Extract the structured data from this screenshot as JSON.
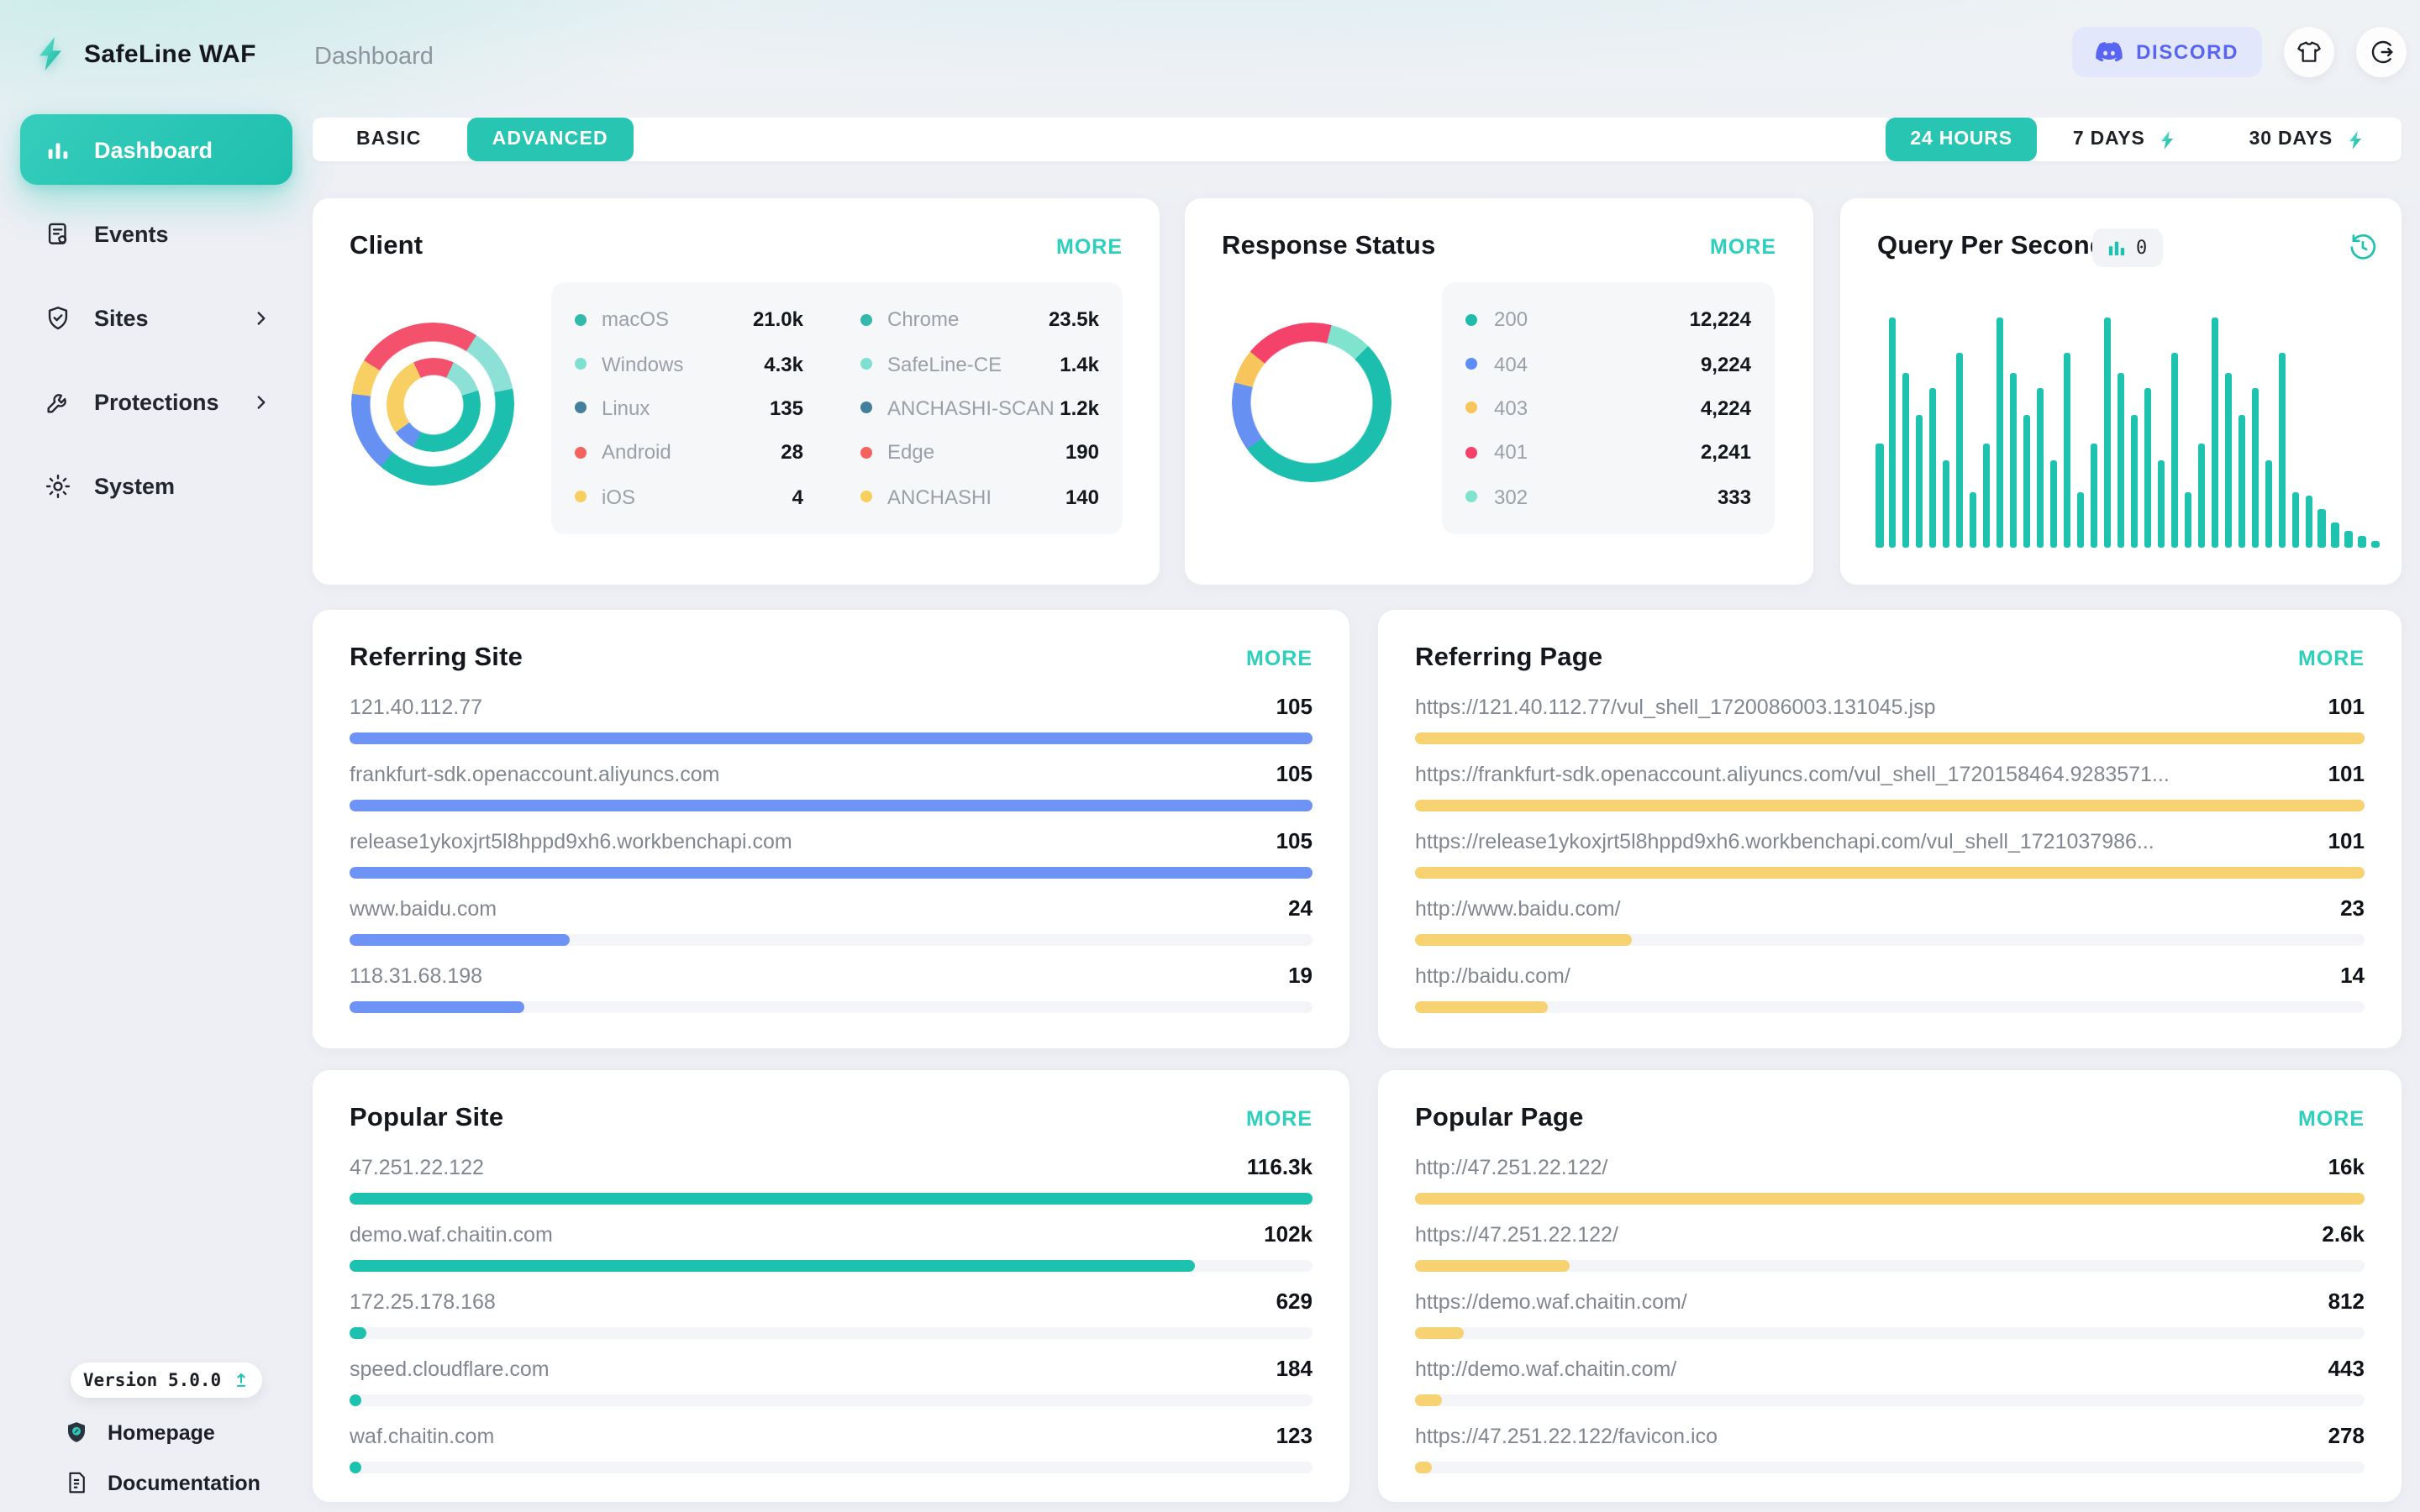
{
  "app": {
    "brand": "SafeLine WAF",
    "page_title": "Dashboard",
    "version": "Version 5.0.0"
  },
  "header": {
    "discord_label": "DISCORD"
  },
  "strings": {
    "more": "MORE"
  },
  "colors": {
    "accent_teal": "#29c5b3",
    "more_link": "#2ed0bd",
    "chart_teal": "#1cbfae",
    "chart_mint": "#8ce0d6",
    "chart_blue": "#6691f3",
    "chart_red": "#f4516c",
    "chart_yellow": "#f7cf62",
    "bar_blue": "#6d93f4",
    "bar_yellow": "#f7d272",
    "bar_teal": "#1dc2ae",
    "discord": "#5865f2"
  },
  "sidebar": {
    "items": [
      {
        "id": "dashboard",
        "label": "Dashboard",
        "icon": "chart-bars",
        "active": true,
        "chevron": false
      },
      {
        "id": "events",
        "label": "Events",
        "icon": "events-doc",
        "active": false,
        "chevron": false
      },
      {
        "id": "sites",
        "label": "Sites",
        "icon": "shield-check",
        "active": false,
        "chevron": true
      },
      {
        "id": "protections",
        "label": "Protections",
        "icon": "tools",
        "active": false,
        "chevron": true
      },
      {
        "id": "system",
        "label": "System",
        "icon": "gear",
        "active": false,
        "chevron": false
      }
    ],
    "footer_links": [
      {
        "id": "homepage",
        "label": "Homepage",
        "icon": "home-shield"
      },
      {
        "id": "documentation",
        "label": "Documentation",
        "icon": "doc"
      }
    ]
  },
  "toolbar": {
    "mode_tabs": {
      "basic": "BASIC",
      "advanced": "ADVANCED"
    },
    "range_tabs": [
      {
        "label": "24 HOURS",
        "active": true,
        "logo": false
      },
      {
        "label": "7 DAYS",
        "active": false,
        "logo": true
      },
      {
        "label": "30 DAYS",
        "active": false,
        "logo": true
      }
    ]
  },
  "cards": {
    "client": {
      "title": "Client",
      "legend_os": [
        {
          "label": "macOS",
          "value": "21.0k",
          "color": "#35b8ac"
        },
        {
          "label": "Windows",
          "value": "4.3k",
          "color": "#7fe0d0"
        },
        {
          "label": "Linux",
          "value": "135",
          "color": "#44809e"
        },
        {
          "label": "Android",
          "value": "28",
          "color": "#f5635f"
        },
        {
          "label": "iOS",
          "value": "4",
          "color": "#f8cf5e"
        }
      ],
      "legend_browser": [
        {
          "label": "Chrome",
          "value": "23.5k",
          "color": "#35b8ac"
        },
        {
          "label": "SafeLine-CE",
          "value": "1.4k",
          "color": "#7fe0d0"
        },
        {
          "label": "ANCHASHI-SCAN",
          "value": "1.2k",
          "color": "#44809e"
        },
        {
          "label": "Edge",
          "value": "190",
          "color": "#f5635f"
        },
        {
          "label": "ANCHASHI",
          "value": "140",
          "color": "#f8cf5e"
        }
      ],
      "donut_outer": [
        [
          "#f4516c",
          9
        ],
        [
          "#8ce0d6",
          22
        ],
        [
          "#1cbfae",
          61
        ],
        [
          "#6691f3",
          77
        ],
        [
          "#f7cf62",
          84
        ],
        [
          "#f4516c",
          100
        ]
      ],
      "donut_inner": [
        [
          "#f4516c",
          7
        ],
        [
          "#8ce0d6",
          20
        ],
        [
          "#1cbfae",
          57
        ],
        [
          "#6691f3",
          65
        ],
        [
          "#f7cf62",
          93
        ],
        [
          "#f4516c",
          100
        ]
      ]
    },
    "response_status": {
      "title": "Response Status",
      "legend": [
        {
          "label": "200",
          "value": "12,224",
          "color": "#1fbcab"
        },
        {
          "label": "404",
          "value": "9,224",
          "color": "#5e8ef5"
        },
        {
          "label": "403",
          "value": "4,224",
          "color": "#f8c45c"
        },
        {
          "label": "401",
          "value": "2,241",
          "color": "#f4426b"
        },
        {
          "label": "302",
          "value": "333",
          "color": "#7fe3cd"
        }
      ],
      "donut": [
        [
          "#f4426b",
          4
        ],
        [
          "#7fe3cd",
          12.5
        ],
        [
          "#1cbfae",
          65
        ],
        [
          "#6691f3",
          79
        ],
        [
          "#f8c45c",
          86
        ],
        [
          "#f4426b",
          100
        ]
      ]
    },
    "qps": {
      "title": "Query Per Second",
      "counter": "0",
      "bar_color": "#1ec3b0",
      "bars": [
        45,
        100,
        76,
        58,
        69,
        38,
        85,
        24,
        45,
        100,
        76,
        58,
        69,
        38,
        85,
        24,
        45,
        100,
        76,
        58,
        69,
        38,
        85,
        24,
        45,
        100,
        76,
        58,
        69,
        38,
        85,
        24,
        23,
        17,
        11,
        7,
        5,
        3
      ]
    },
    "referring_site": {
      "title": "Referring Site",
      "bar_color": "#6d93f4",
      "rows": [
        {
          "label": "121.40.112.77",
          "value": "105",
          "pct": 100
        },
        {
          "label": "frankfurt-sdk.openaccount.aliyuncs.com",
          "value": "105",
          "pct": 100
        },
        {
          "label": "release1ykoxjrt5l8hppd9xh6.workbenchapi.com",
          "value": "105",
          "pct": 100
        },
        {
          "label": "www.baidu.com",
          "value": "24",
          "pct": 22.9
        },
        {
          "label": "118.31.68.198",
          "value": "19",
          "pct": 18.1
        }
      ]
    },
    "referring_page": {
      "title": "Referring Page",
      "bar_color": "#f7d272",
      "rows": [
        {
          "label": "https://121.40.112.77/vul_shell_1720086003.131045.jsp",
          "value": "101",
          "pct": 100
        },
        {
          "label": "https://frankfurt-sdk.openaccount.aliyuncs.com/vul_shell_1720158464.9283571...",
          "value": "101",
          "pct": 100
        },
        {
          "label": "https://release1ykoxjrt5l8hppd9xh6.workbenchapi.com/vul_shell_1721037986...",
          "value": "101",
          "pct": 100
        },
        {
          "label": "http://www.baidu.com/",
          "value": "23",
          "pct": 22.8
        },
        {
          "label": "http://baidu.com/",
          "value": "14",
          "pct": 13.9
        }
      ]
    },
    "popular_site": {
      "title": "Popular Site",
      "bar_color": "#1dc2ae",
      "rows": [
        {
          "label": "47.251.22.122",
          "value": "116.3k",
          "pct": 100
        },
        {
          "label": "demo.waf.chaitin.com",
          "value": "102k",
          "pct": 87.7
        },
        {
          "label": "172.25.178.168",
          "value": "629",
          "pct": 1.8
        },
        {
          "label": "speed.cloudflare.com",
          "value": "184",
          "pct": 0.9
        },
        {
          "label": "waf.chaitin.com",
          "value": "123",
          "pct": 0.9
        }
      ]
    },
    "popular_page": {
      "title": "Popular Page",
      "bar_color": "#f7d272",
      "rows": [
        {
          "label": "http://47.251.22.122/",
          "value": "16k",
          "pct": 100
        },
        {
          "label": "https://47.251.22.122/",
          "value": "2.6k",
          "pct": 16.3
        },
        {
          "label": "https://demo.waf.chaitin.com/",
          "value": "812",
          "pct": 5.1
        },
        {
          "label": "http://demo.waf.chaitin.com/",
          "value": "443",
          "pct": 2.9
        },
        {
          "label": "https://47.251.22.122/favicon.ico",
          "value": "278",
          "pct": 1.7
        }
      ]
    }
  }
}
